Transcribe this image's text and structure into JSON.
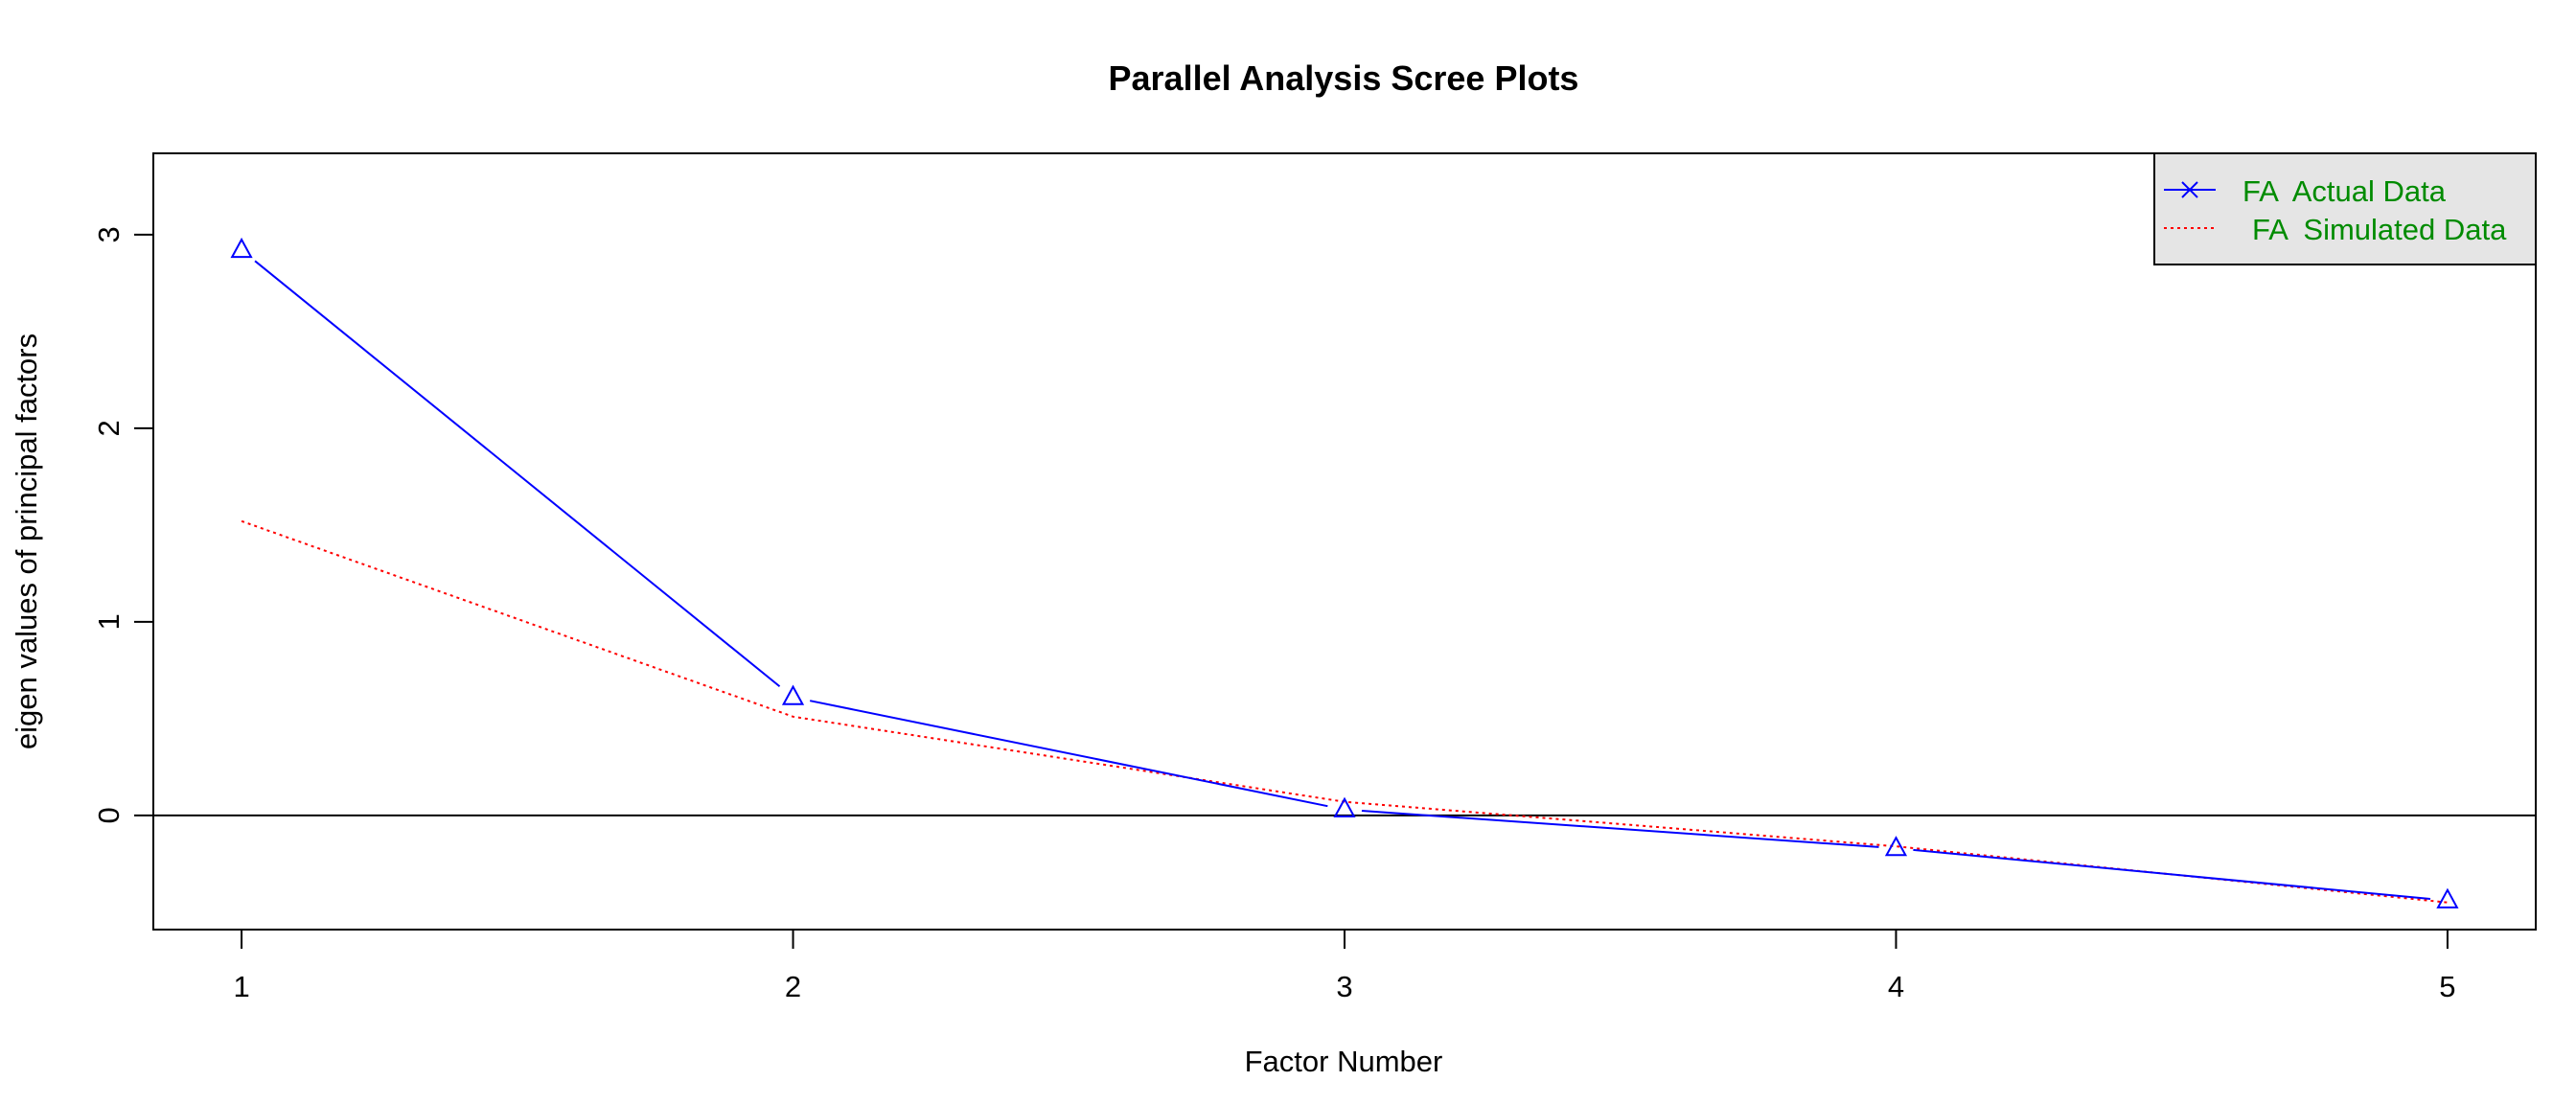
{
  "chart_data": {
    "type": "line",
    "title": "Parallel Analysis Scree Plots",
    "xlabel": "Factor Number",
    "ylabel": "eigen values of principal factors",
    "x": [
      1,
      2,
      3,
      4,
      5
    ],
    "xlim": [
      0.84,
      5.16
    ],
    "ylim": [
      -0.59,
      3.42
    ],
    "xticks": [
      "1",
      "2",
      "3",
      "4",
      "5"
    ],
    "yticks": [
      "0",
      "1",
      "2",
      "3"
    ],
    "yticks_values": [
      0,
      1,
      2,
      3
    ],
    "reference_line_y": 0,
    "series": [
      {
        "name": "FA  Actual Data",
        "values": [
          2.92,
          0.61,
          0.03,
          -0.17,
          -0.44
        ],
        "color": "#0000ff",
        "style": "solid",
        "marker": "triangle"
      },
      {
        "name": "FA  Simulated Data",
        "values": [
          1.52,
          0.51,
          0.07,
          -0.16,
          -0.45
        ],
        "color": "#ff0000",
        "style": "dotted"
      }
    ],
    "legend": {
      "position": "top-right",
      "text_color": "#008b00",
      "background": "#e5e5e5",
      "entries": [
        "FA  Actual Data",
        "FA  Simulated Data"
      ]
    }
  }
}
